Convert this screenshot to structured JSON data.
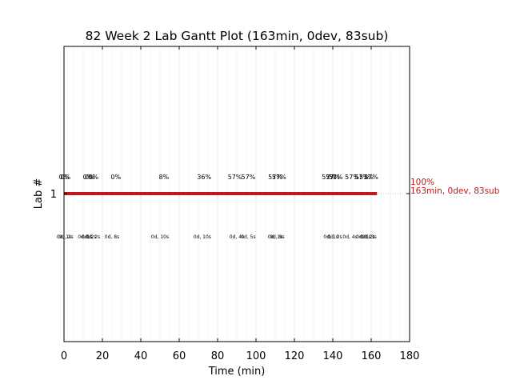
{
  "chart_data": {
    "type": "gantt",
    "title": "82 Week 2 Lab Gantt Plot (163min, 0dev, 83sub)",
    "xlabel": "Time (min)",
    "ylabel": "Lab #",
    "xlim": [
      0,
      180
    ],
    "xticks": [
      0,
      20,
      40,
      60,
      80,
      100,
      120,
      140,
      160,
      180
    ],
    "yticks": [
      "1"
    ],
    "grid": "vertical dotted",
    "bar": {
      "lab": "1",
      "start": 0,
      "end": 163,
      "color": "#c0191b"
    },
    "progress_annotations": [
      {
        "x": 0,
        "label": "0%"
      },
      {
        "x": 0.8,
        "label": "0%"
      },
      {
        "x": 12.5,
        "label": "0%"
      },
      {
        "x": 13.5,
        "label": "0%"
      },
      {
        "x": 15.3,
        "label": "0%"
      },
      {
        "x": 27,
        "label": "0%"
      },
      {
        "x": 52,
        "label": "8%"
      },
      {
        "x": 73,
        "label": "36%"
      },
      {
        "x": 89,
        "label": "57%"
      },
      {
        "x": 96,
        "label": "57%"
      },
      {
        "x": 110,
        "label": "57%"
      },
      {
        "x": 112,
        "label": "57%"
      },
      {
        "x": 138,
        "label": "57%"
      },
      {
        "x": 140,
        "label": "57%"
      },
      {
        "x": 141.5,
        "label": "57%"
      },
      {
        "x": 150,
        "label": "57%"
      },
      {
        "x": 155,
        "label": "57%"
      },
      {
        "x": 157.5,
        "label": "57%"
      },
      {
        "x": 160,
        "label": "57%"
      }
    ],
    "time_annotations": [
      {
        "x": 0,
        "label": "0d, 1s"
      },
      {
        "x": 1,
        "label": "0d, 2s"
      },
      {
        "x": 11,
        "label": "0d, 1s"
      },
      {
        "x": 13,
        "label": "0d, 2s"
      },
      {
        "x": 15,
        "label": "0d, 2s"
      },
      {
        "x": 25,
        "label": "0d, 8s"
      },
      {
        "x": 50,
        "label": "0d, 10s"
      },
      {
        "x": 72,
        "label": "0d, 10s"
      },
      {
        "x": 90,
        "label": "0d, 4s"
      },
      {
        "x": 96,
        "label": "0d, 5s"
      },
      {
        "x": 110,
        "label": "0d, 1s"
      },
      {
        "x": 111,
        "label": "0d, 9s"
      },
      {
        "x": 139,
        "label": "0d, 1s"
      },
      {
        "x": 141,
        "label": "0d, 3s"
      },
      {
        "x": 149,
        "label": "0d, 4s"
      },
      {
        "x": 156,
        "label": "0d, 1s"
      },
      {
        "x": 158,
        "label": "0d, 2s"
      },
      {
        "x": 159,
        "label": "0d, 3s"
      }
    ],
    "final_label": [
      "100%",
      "163min, 0dev, 83sub"
    ]
  }
}
